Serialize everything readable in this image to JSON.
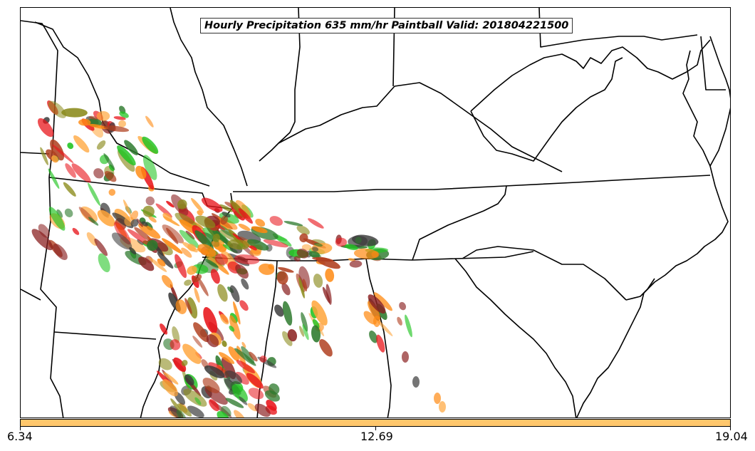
{
  "title": "Hourly Precipitation 635 mm/hr Paintball Valid: 201804221500",
  "colorbar": {
    "color": "#ffc76c",
    "labels": [
      "6.34",
      "12.69",
      "19.04"
    ]
  },
  "members": [
    {
      "name": "member-red",
      "color": "#e8141a"
    },
    {
      "name": "member-orange",
      "color": "#ff8a12"
    },
    {
      "name": "member-light-orange",
      "color": "#ffa53a"
    },
    {
      "name": "member-green",
      "color": "#22c422"
    },
    {
      "name": "member-dark-green",
      "color": "#2e7a2e"
    },
    {
      "name": "member-olive",
      "color": "#8a8a1a"
    },
    {
      "name": "member-maroon",
      "color": "#8b2222"
    },
    {
      "name": "member-dark-gray",
      "color": "#3a3a3a"
    },
    {
      "name": "member-brown-red",
      "color": "#b04020"
    }
  ]
}
